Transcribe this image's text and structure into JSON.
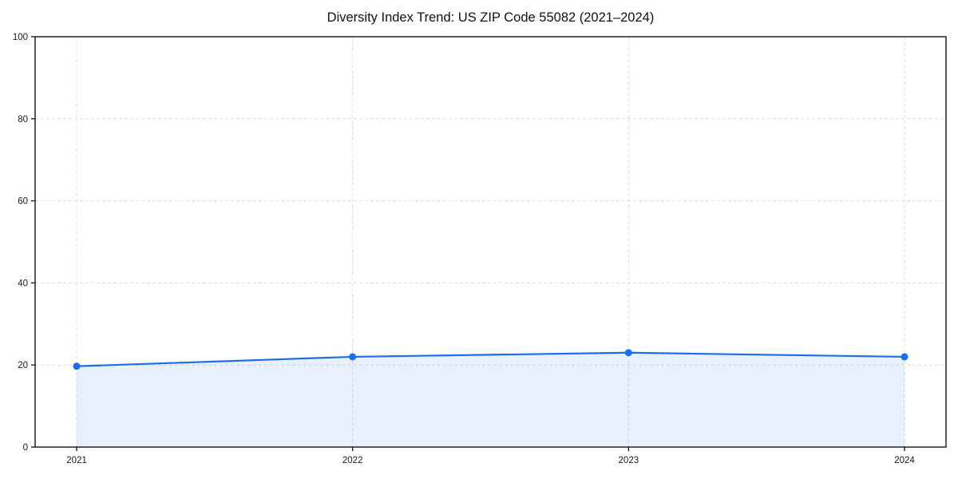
{
  "figure": {
    "background": "#ffffff"
  },
  "chart_data": {
    "type": "area",
    "title": "Diversity Index Trend: US ZIP Code 55082 (2021–2024)",
    "categories": [
      "2021",
      "2022",
      "2023",
      "2024"
    ],
    "series": [
      {
        "name": "Diversity Index",
        "values": [
          19.7,
          22.0,
          23.0,
          22.0
        ]
      }
    ],
    "xlabel": "",
    "ylabel": "",
    "ylim": [
      0,
      100
    ],
    "yticks": [
      0,
      20,
      40,
      60,
      80,
      100
    ],
    "grid": "dashed",
    "legend_position": "none",
    "line_color": "#1a6ee8",
    "marker_color": "#1a6ee8",
    "fill_color": "#1a6ee8",
    "fill_opacity": 0.1,
    "axis_color": "#000000",
    "grid_color": "#dcdcdc",
    "tick_label_color": "#1a1a1a",
    "title_color": "#111111"
  }
}
